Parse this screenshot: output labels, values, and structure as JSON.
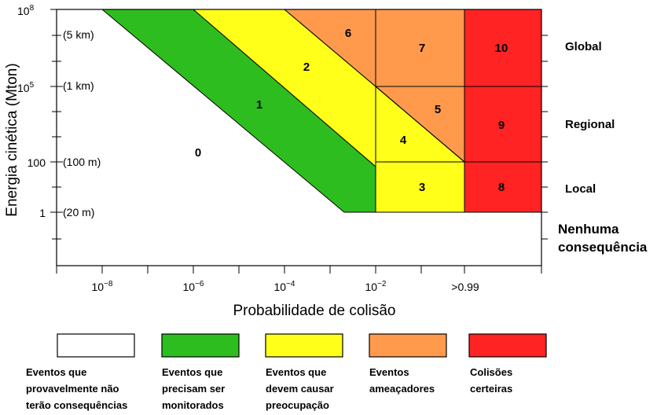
{
  "diagram": {
    "y_axis_title": "Energia cinética (Mton)",
    "x_axis_title": "Probabilidade de colisão",
    "y_ticks": [
      {
        "base": "10",
        "exp": "8"
      },
      {
        "base": "10",
        "exp": "5"
      },
      {
        "label": "100"
      },
      {
        "label": "1"
      }
    ],
    "size_labels": [
      "(5 km)",
      "(1 km)",
      "(100 m)",
      "(20 m)"
    ],
    "x_ticks": [
      {
        "base": "10",
        "exp": "−8"
      },
      {
        "base": "10",
        "exp": "−6"
      },
      {
        "base": "10",
        "exp": "−4"
      },
      {
        "base": "10",
        "exp": "−2"
      },
      {
        "label": ">0.99"
      }
    ],
    "zones": [
      "0",
      "1",
      "2",
      "3",
      "4",
      "5",
      "6",
      "7",
      "8",
      "9",
      "10"
    ],
    "right_labels": {
      "global": "Global",
      "regional": "Regional",
      "local": "Local",
      "none_line1": "Nenhuma",
      "none_line2": "consequência"
    },
    "colors": {
      "white": "#ffffff",
      "green": "#2ebd1f",
      "yellow": "#ffff1a",
      "orange": "#ff9a4d",
      "red": "#ff2323"
    }
  },
  "legend": [
    {
      "color": "#ffffff",
      "lines": [
        "Eventos que",
        "provavelmente não",
        "terão consequências"
      ]
    },
    {
      "color": "#2ebd1f",
      "lines": [
        "Eventos que",
        "precisam ser",
        "monitorados"
      ]
    },
    {
      "color": "#ffff1a",
      "lines": [
        "Eventos que",
        "devem causar",
        "preocupação"
      ]
    },
    {
      "color": "#ff9a4d",
      "lines": [
        "Eventos",
        "ameaçadores"
      ]
    },
    {
      "color": "#ff2323",
      "lines": [
        "Colisões",
        "certeiras"
      ]
    }
  ]
}
